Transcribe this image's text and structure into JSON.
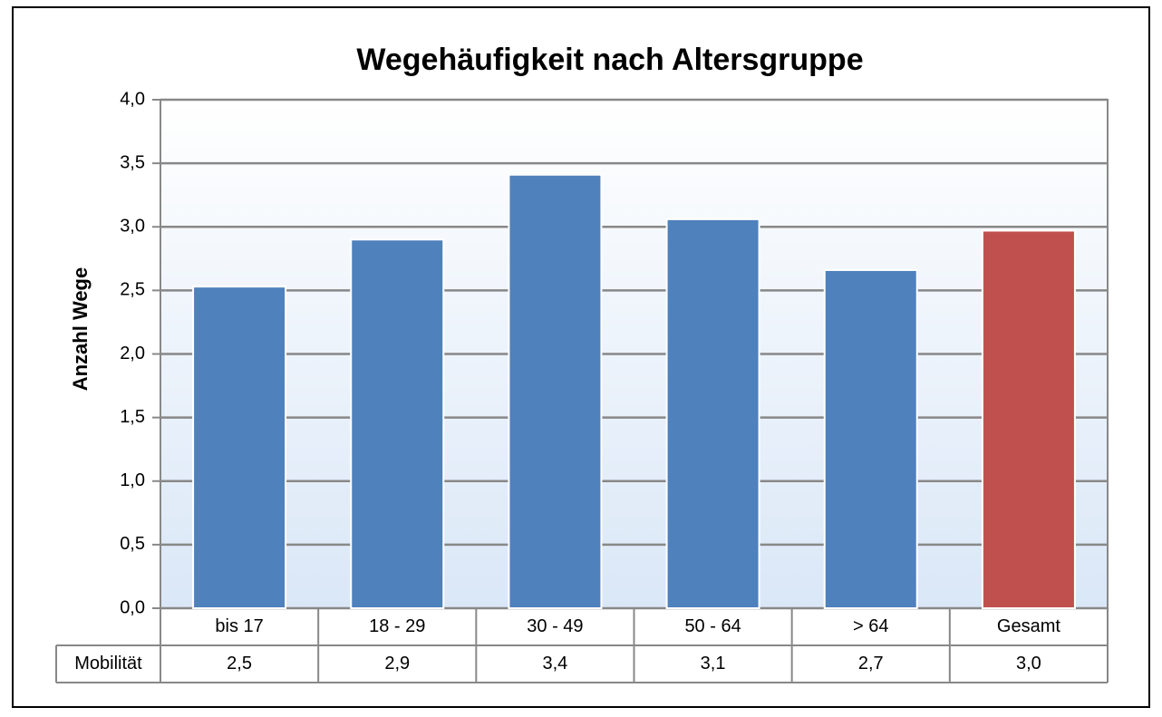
{
  "chart_data": {
    "type": "bar",
    "title": "Wegehäufigkeit nach Altersgruppe",
    "y_label": "Anzahl Wege",
    "categories": [
      "bis 17",
      "18 - 29",
      "30 - 49",
      "50 - 64",
      "> 64",
      "Gesamt"
    ],
    "series": [
      {
        "name": "Mobilität",
        "colors": [
          "#4f81bd",
          "#4f81bd",
          "#4f81bd",
          "#4f81bd",
          "#4f81bd",
          "#c0504d"
        ],
        "values": [
          2.53,
          2.9,
          3.41,
          3.06,
          2.66,
          2.97
        ],
        "value_labels": [
          "2,5",
          "2,9",
          "3,4",
          "3,1",
          "2,7",
          "3,0"
        ]
      }
    ],
    "ylim": [
      0,
      4
    ],
    "yticks": [
      {
        "value": 0,
        "label": "0,0"
      },
      {
        "value": 0.5,
        "label": "0,5"
      },
      {
        "value": 1,
        "label": "1,0"
      },
      {
        "value": 1.5,
        "label": "1,5"
      },
      {
        "value": 2,
        "label": "2,0"
      },
      {
        "value": 2.5,
        "label": "2,5"
      },
      {
        "value": 3,
        "label": "3,0"
      },
      {
        "value": 3.5,
        "label": "3,5"
      },
      {
        "value": 4,
        "label": "4,0"
      }
    ],
    "grid": true,
    "data_table": true
  }
}
